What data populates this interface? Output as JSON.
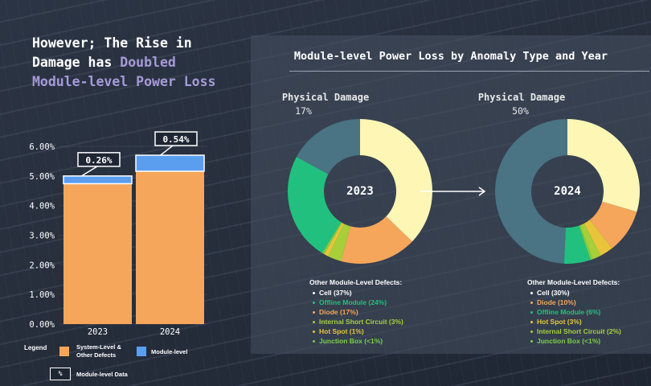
{
  "headline": {
    "line1": "However; The Rise in",
    "line2_prefix": "Damage has ",
    "line2_highlight": "Doubled",
    "line3": "Module-level Power Loss"
  },
  "right_title": "Module-level Power Loss by Anomaly Type and Year",
  "colors": {
    "orange": "#f5a65b",
    "blue": "#5b9ef0",
    "cream": "#fdf6b4",
    "teal": "#4a7384",
    "green": "#22c07f",
    "yellowgreen": "#a6cf3a",
    "lime": "#7bcf45"
  },
  "chart_data": [
    {
      "type": "bar",
      "stacked": true,
      "categories": [
        "2023",
        "2024"
      ],
      "series": [
        {
          "name": "System-Level & Other Defects",
          "color": "#f5a65b",
          "values": [
            4.74,
            5.16
          ]
        },
        {
          "name": "Module-level",
          "color": "#5b9ef0",
          "values": [
            0.26,
            0.54
          ]
        }
      ],
      "ylim": [
        0,
        6
      ],
      "yticks": [
        "0.00%",
        "1.00%",
        "2.00%",
        "3.00%",
        "4.00%",
        "5.00%",
        "6.00%"
      ],
      "data_labels": [
        "0.26%",
        "0.54%"
      ]
    },
    {
      "type": "pie",
      "donut": true,
      "center_label": "2023",
      "title": "Physical Damage",
      "title_value": "17%",
      "slices": [
        {
          "label": "Cell",
          "value": 37,
          "color": "#fdf6b4"
        },
        {
          "label": "Diode",
          "value": 17,
          "color": "#f5a65b"
        },
        {
          "label": "Internal Short Circuit",
          "value": 3,
          "color": "#a6cf3a"
        },
        {
          "label": "Hot Spot",
          "value": 1,
          "color": "#e8c43a"
        },
        {
          "label": "Junction Box",
          "value": 0.5,
          "color": "#7bcf45"
        },
        {
          "label": "Offline Module",
          "value": 24,
          "color": "#22c07f"
        },
        {
          "label": "Physical Damage",
          "value": 17,
          "color": "#4a7384"
        }
      ]
    },
    {
      "type": "pie",
      "donut": true,
      "center_label": "2024",
      "title": "Physical Damage",
      "title_value": "50%",
      "slices": [
        {
          "label": "Cell",
          "value": 30,
          "color": "#fdf6b4"
        },
        {
          "label": "Diode",
          "value": 10,
          "color": "#f5a65b"
        },
        {
          "label": "Hot Spot",
          "value": 3,
          "color": "#e8c43a"
        },
        {
          "label": "Internal Short Circuit",
          "value": 2,
          "color": "#a6cf3a"
        },
        {
          "label": "Junction Box",
          "value": 0.5,
          "color": "#7bcf45"
        },
        {
          "label": "Offline Module",
          "value": 6,
          "color": "#22c07f"
        },
        {
          "label": "Physical Damage",
          "value": 50,
          "color": "#4a7384"
        }
      ]
    }
  ],
  "defects_2023": {
    "header": "Other Module-Level Defects:",
    "items": [
      {
        "text": "Cell (37%)",
        "color": "#ffffff"
      },
      {
        "text": "Offline Module (24%)",
        "color": "#22c07f"
      },
      {
        "text": "Diode (17%)",
        "color": "#f5a65b"
      },
      {
        "text": "Internal Short Circuit (3%)",
        "color": "#a6cf3a"
      },
      {
        "text": "Hot Spot (1%)",
        "color": "#e8c43a"
      },
      {
        "text": "Junction Box (<1%)",
        "color": "#7bcf45"
      }
    ]
  },
  "defects_2024": {
    "header": "Other Module-Level Defects:",
    "items": [
      {
        "text": "Cell (30%)",
        "color": "#ffffff"
      },
      {
        "text": "Diode (10%)",
        "color": "#f5a65b"
      },
      {
        "text": "Offline Module (6%)",
        "color": "#22c07f"
      },
      {
        "text": "Hot Spot (3%)",
        "color": "#e8c43a"
      },
      {
        "text": "Internal Short Circuit (2%)",
        "color": "#a6cf3a"
      },
      {
        "text": "Junction Box (<1%)",
        "color": "#7bcf45"
      }
    ]
  },
  "legend": {
    "title": "Legend",
    "item1_line1": "System-Level &",
    "item1_line2": "Other Defects",
    "item2": "Module-level",
    "box_symbol": "%",
    "box_label": "Module-level Data"
  }
}
